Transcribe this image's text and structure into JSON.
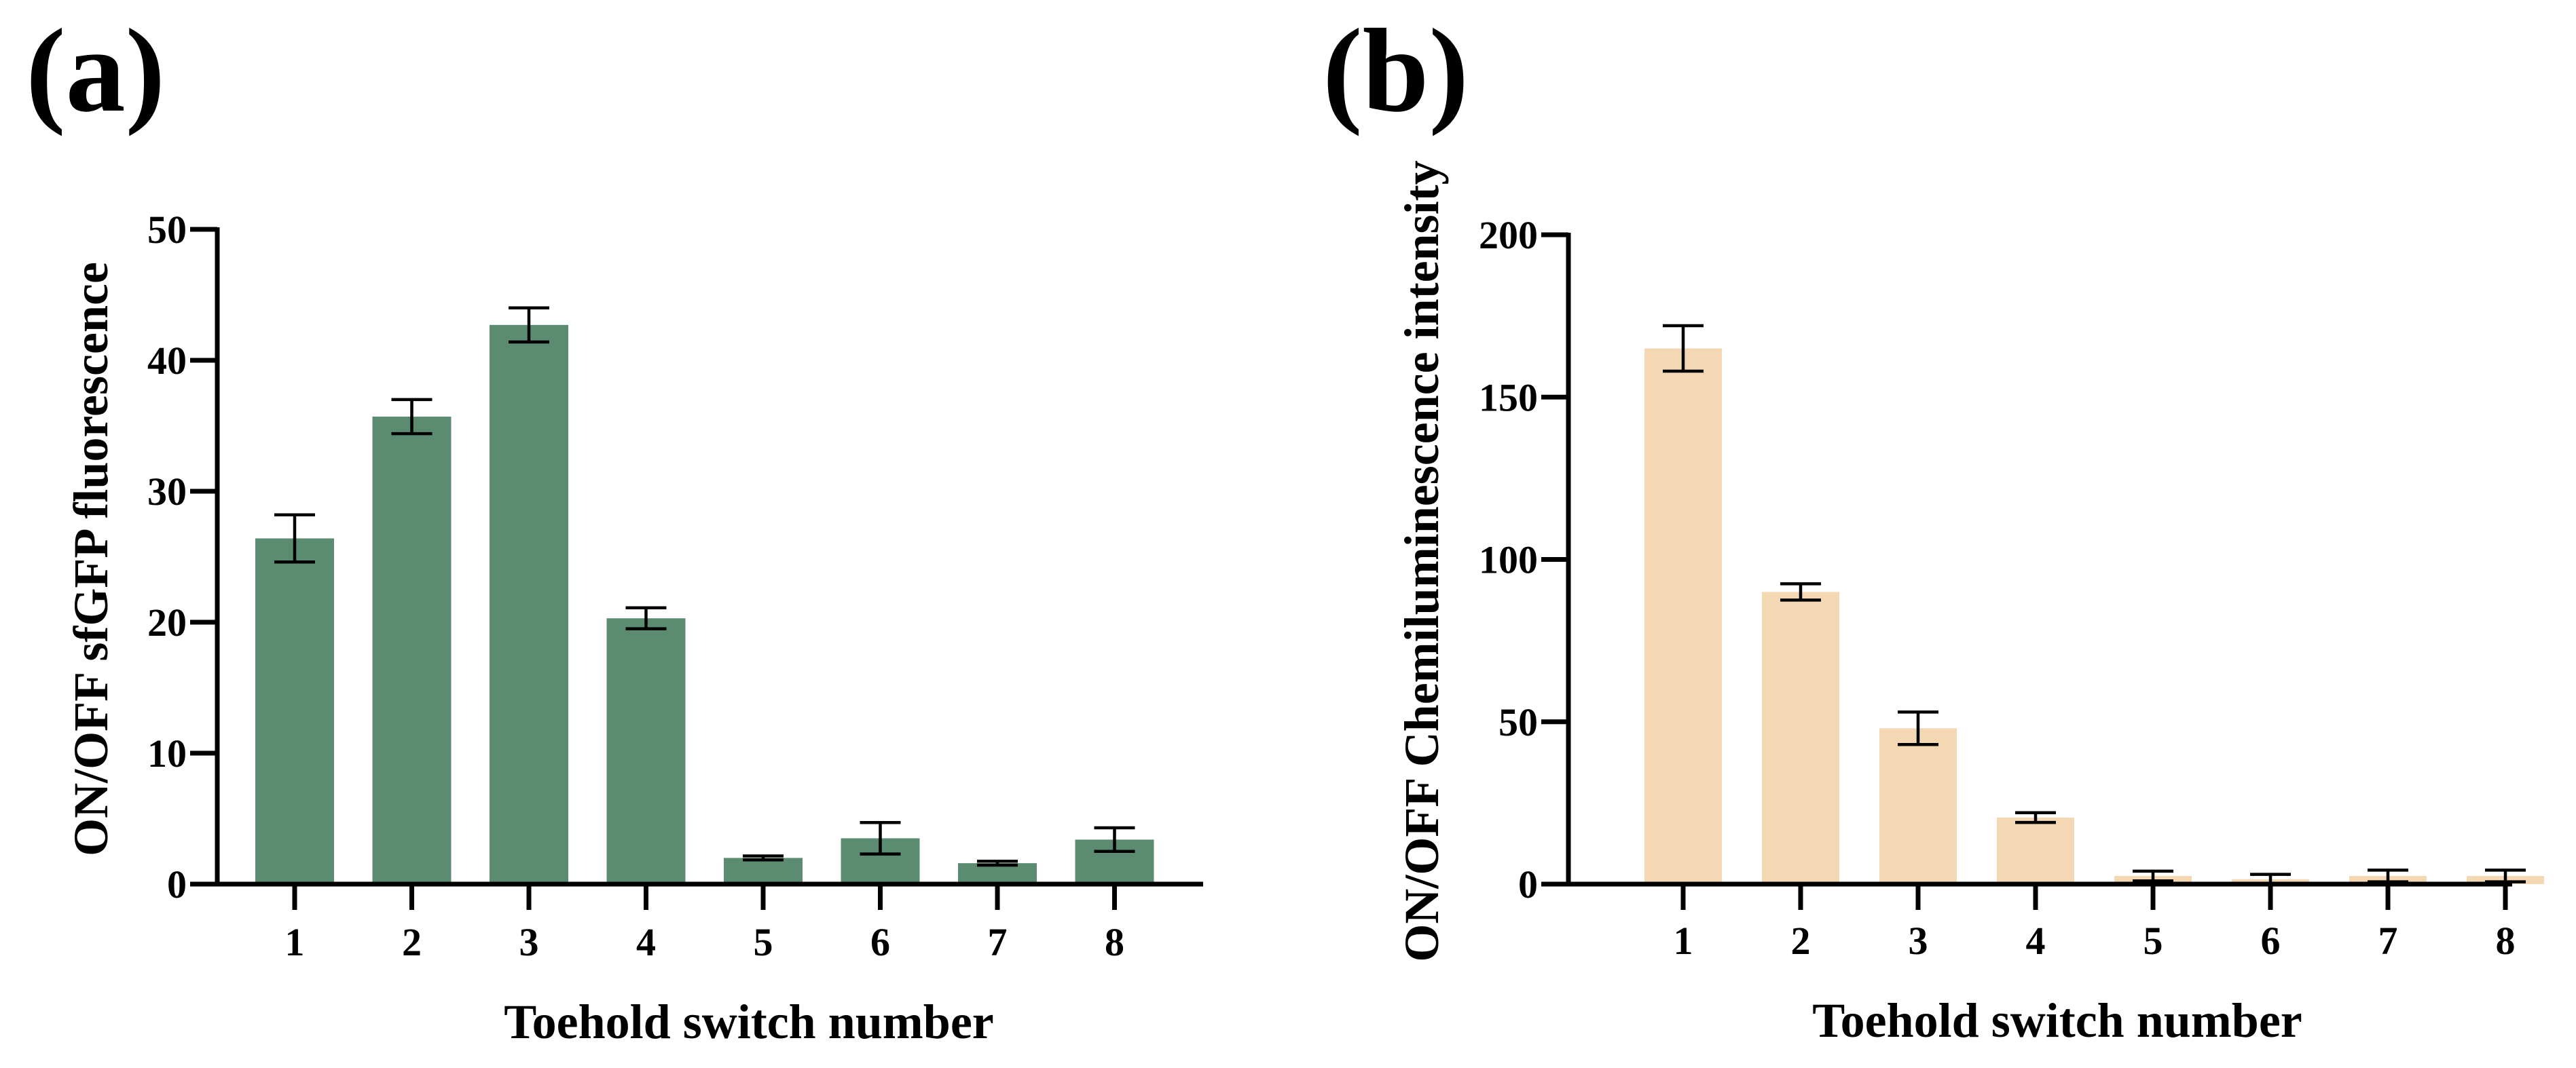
{
  "panels": [
    {
      "label": "(a)",
      "bar_color": "#5b8c71",
      "ytick_labels": [
        "0",
        "10",
        "20",
        "30",
        "40",
        "50"
      ],
      "xtick_labels": [
        "1",
        "2",
        "3",
        "4",
        "5",
        "6",
        "7",
        "8"
      ]
    },
    {
      "label": "(b)",
      "bar_color": "#f3d8b3",
      "ytick_labels": [
        "0",
        "50",
        "100",
        "150",
        "200"
      ],
      "xtick_labels": [
        "1",
        "2",
        "3",
        "4",
        "5",
        "6",
        "7",
        "8"
      ]
    }
  ],
  "chart_data": [
    {
      "type": "bar",
      "title": "",
      "categories": [
        "1",
        "2",
        "3",
        "4",
        "5",
        "6",
        "7",
        "8"
      ],
      "values": [
        26.4,
        35.7,
        42.7,
        20.3,
        2.0,
        3.5,
        1.6,
        3.4
      ],
      "errors": [
        1.8,
        1.3,
        1.3,
        0.8,
        0.15,
        1.2,
        0.15,
        0.9
      ],
      "xlabel": "Toehold switch number",
      "ylabel": "ON/OFF sfGFP fluorescence",
      "ylim": [
        0,
        50
      ],
      "yticks": [
        0,
        10,
        20,
        30,
        40,
        50
      ]
    },
    {
      "type": "bar",
      "title": "",
      "categories": [
        "1",
        "2",
        "3",
        "4",
        "5",
        "6",
        "7",
        "8"
      ],
      "values": [
        165,
        90,
        48,
        20.5,
        2.5,
        1.5,
        2.5,
        2.5
      ],
      "errors": [
        7,
        2.5,
        5,
        1.5,
        1.5,
        1.5,
        1.8,
        1.8
      ],
      "xlabel": "Toehold switch number",
      "ylabel": "ON/OFF Chemiluminescence intensity",
      "ylim": [
        0,
        200
      ],
      "yticks": [
        0,
        50,
        100,
        150,
        200
      ]
    }
  ]
}
